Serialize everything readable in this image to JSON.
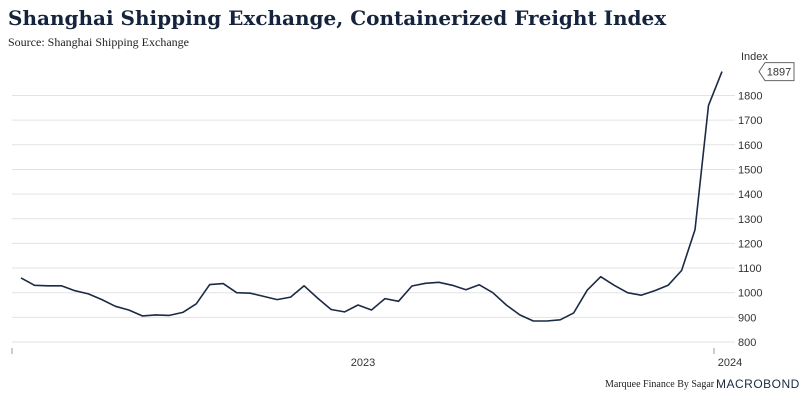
{
  "header": {
    "title": "Shanghai Shipping Exchange, Containerized Freight Index",
    "source": "Source: Shanghai Shipping Exchange"
  },
  "footer": {
    "credit": "Marquee Finance By Sagar",
    "brand": "MACROBOND"
  },
  "colors": {
    "line": "#1b2a45",
    "grid": "#e3e3e3",
    "axis": "#999999"
  },
  "chart_data": {
    "type": "line",
    "title": "Shanghai Shipping Exchange, Containerized Freight Index",
    "ylabel": "Index",
    "ylim": [
      800,
      1900
    ],
    "y_ticks": [
      800,
      900,
      1000,
      1100,
      1200,
      1300,
      1400,
      1500,
      1600,
      1700,
      1800
    ],
    "x_ticks": [
      "2023",
      "2024"
    ],
    "grid": true,
    "last_value_label": "1897",
    "series": [
      {
        "values": [
          1060,
          1030,
          1028,
          1028,
          1008,
          995,
          972,
          945,
          930,
          906,
          910,
          908,
          920,
          955,
          1033,
          1037,
          1000,
          998,
          985,
          972,
          982,
          1028,
          978,
          932,
          922,
          950,
          930,
          976,
          965,
          1027,
          1038,
          1042,
          1030,
          1012,
          1032,
          1000,
          950,
          910,
          885,
          885,
          890,
          918,
          1010,
          1065,
          1030,
          1000,
          990,
          1008,
          1030,
          1090,
          1255,
          1760,
          1897
        ]
      }
    ]
  }
}
